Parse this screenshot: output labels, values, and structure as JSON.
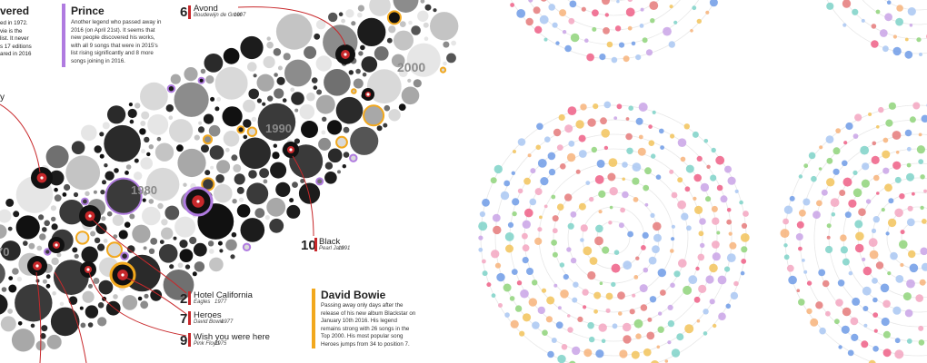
{
  "colors": {
    "accent_red": "#c8282b",
    "prince_purple": "#b07be0",
    "bowie_orange": "#f2a81d",
    "dot_palette": [
      "#f3a6c1",
      "#ee5f86",
      "#f2c35b",
      "#8fd47a",
      "#6f9be6",
      "#a9c7f2",
      "#c9a3e6",
      "#f7b37a",
      "#7ed2c8",
      "#e57a7a"
    ]
  },
  "left_panel": {
    "decade_labels": [
      "2000",
      "1990",
      "1980",
      "70"
    ],
    "fragments": {
      "top_left_heading": "vered",
      "top_left_lines": [
        "ed in 1972.",
        "vie is the",
        "list. It never",
        "s 17 editions",
        "ared in 2016"
      ],
      "left_edge_label": "y"
    },
    "prince": {
      "title": "Prince",
      "lines": [
        "Another legend who passed away in",
        "2016 (on April 21st). It seems that",
        "new people discovered his works,",
        "with all 9 songs that were in 2015's",
        "list rising significantly and 8 more",
        "songs joining in 2016."
      ]
    },
    "david_bowie": {
      "title": "David Bowie",
      "lines": [
        "Passing away only days after the",
        "release of his new album Blackstar on",
        "January 10th 2016. His legend",
        "remains strong with 26 songs in the",
        "Top 2000. His most popular song",
        "Heroes jumps from 34 to position 7."
      ]
    },
    "ranks": [
      {
        "rank": "6",
        "title": "Avond",
        "artist": "Boudewijn de Groot",
        "year": "1997"
      },
      {
        "rank": "10",
        "title": "Black",
        "artist": "Pearl Jam",
        "year": "1991"
      },
      {
        "rank": "2",
        "title": "Hotel California",
        "artist": "Eagles",
        "year": "1977"
      },
      {
        "rank": "7",
        "title": "Heroes",
        "artist": "David Bowie",
        "year": "1977"
      },
      {
        "rank": "9",
        "title": "Wish you were here",
        "artist": "Pink Floyd",
        "year": "1975"
      }
    ]
  }
}
